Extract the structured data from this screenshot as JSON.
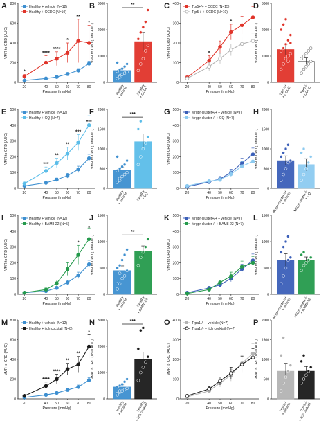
{
  "colors": {
    "blue": "#3d8fd0",
    "red": "#e0342a",
    "lightblue": "#5bbde9",
    "green": "#259a4c",
    "black": "#1a1a1a",
    "darkblue": "#3b5fb8",
    "paleblue": "#8ccaf0",
    "gray": "#b3b3b3"
  },
  "chart_data": [
    {
      "panel": "A",
      "type": "line",
      "ylabel": "VMR to CRD (AUC)",
      "xlabel": "Pressure (mmHg)",
      "x": [
        20,
        40,
        50,
        60,
        70,
        80
      ],
      "ylim": [
        0,
        800
      ],
      "yticks": [
        0,
        200,
        400,
        600,
        800
      ],
      "series": [
        {
          "name": "Healthy + vehicle (N=12)",
          "color": "blue",
          "fill": "filled",
          "values": [
            20,
            40,
            55,
            85,
            120,
            190
          ],
          "err": [
            5,
            8,
            10,
            15,
            20,
            25
          ]
        },
        {
          "name": "Healthy + CCDC (N=10)",
          "color": "red",
          "fill": "filled",
          "values": [
            60,
            200,
            240,
            300,
            420,
            400
          ],
          "err": [
            20,
            70,
            70,
            100,
            220,
            180
          ]
        }
      ],
      "annotations": [
        {
          "x": 20,
          "label": "*"
        },
        {
          "x": 40,
          "label": "****"
        },
        {
          "x": 50,
          "label": "****"
        },
        {
          "x": 60,
          "label": "*"
        },
        {
          "x": 70,
          "label": "**"
        },
        {
          "x": 80,
          "label": "*"
        }
      ]
    },
    {
      "panel": "B",
      "type": "bar",
      "ylabel": "VMR to CRD (Total AUC)",
      "ylim": [
        0,
        3000
      ],
      "yticks": [
        0,
        1000,
        2000,
        3000
      ],
      "categories": [
        "Healthy\n+ vehicle",
        "Healthy\n+ CCDC"
      ],
      "cat_colors": [
        "blue",
        "red"
      ],
      "bars": [
        {
          "color": "blue",
          "value": 450,
          "err": 80,
          "points": [
            150,
            250,
            300,
            350,
            400,
            420,
            480,
            520,
            600,
            700,
            750,
            200
          ]
        },
        {
          "color": "red",
          "value": 1550,
          "err": 350,
          "points": [
            450,
            700,
            900,
            1200,
            1400,
            1650,
            1900,
            2100,
            2300,
            2750
          ]
        }
      ],
      "significance": "**"
    },
    {
      "panel": "C",
      "type": "line",
      "ylabel": "VMR to CRD (AUC)",
      "xlabel": "Pressure (mmHg)",
      "x": [
        20,
        40,
        50,
        60,
        70,
        80
      ],
      "ylim": [
        0,
        400
      ],
      "yticks": [
        0,
        100,
        200,
        300,
        400
      ],
      "series": [
        {
          "name": "Tgr5+/+ + CCDC (N=15)",
          "color": "red",
          "fill": "filled",
          "values": [
            25,
            110,
            180,
            255,
            290,
            330
          ],
          "err": [
            8,
            25,
            30,
            40,
            45,
            55
          ]
        },
        {
          "name": "Tgr5-/- + CCDC (N=10)",
          "color": "gray",
          "fill": "open",
          "values": [
            20,
            80,
            120,
            165,
            195,
            210
          ],
          "err": [
            6,
            20,
            25,
            30,
            35,
            40
          ]
        }
      ],
      "annotations": [
        {
          "x": 40,
          "label": "*"
        },
        {
          "x": 60,
          "label": "*"
        }
      ]
    },
    {
      "panel": "D",
      "type": "bar",
      "ylabel": "VMR to CRD (Total AUC)",
      "ylim": [
        0,
        3000
      ],
      "yticks": [
        0,
        1000,
        2000,
        3000
      ],
      "categories": [
        "Tgr5+/+\n+ CCDC",
        "Tgr5-/-\n+ CCDC"
      ],
      "cat_colors": [
        "red",
        "gray"
      ],
      "bars": [
        {
          "color": "red",
          "value": 1250,
          "err": 200,
          "points": [
            500,
            700,
            900,
            1000,
            1100,
            1200,
            1300,
            1450,
            1600,
            1800,
            2000,
            2200,
            2400,
            800,
            1500
          ]
        },
        {
          "color": "gray",
          "value": 800,
          "err": 130,
          "points": [
            350,
            500,
            600,
            700,
            800,
            900,
            1000,
            1100,
            1200,
            1300
          ]
        }
      ],
      "open_second": true
    },
    {
      "panel": "E",
      "type": "line",
      "ylabel": "VMR to CRD (AUC)",
      "xlabel": "Pressure (mmHg)",
      "x": [
        20,
        40,
        50,
        60,
        70,
        80
      ],
      "ylim": [
        0,
        500
      ],
      "yticks": [
        0,
        100,
        200,
        300,
        400,
        500
      ],
      "series": [
        {
          "name": "Healthy + vehicle (N=12)",
          "color": "blue",
          "fill": "filled",
          "values": [
            15,
            35,
            55,
            80,
            120,
            190
          ],
          "err": [
            4,
            8,
            10,
            15,
            20,
            25
          ]
        },
        {
          "name": "Healthy + CQ (N=7)",
          "color": "lightblue",
          "fill": "filled",
          "values": [
            30,
            110,
            160,
            220,
            290,
            400
          ],
          "err": [
            10,
            25,
            30,
            40,
            50,
            60
          ]
        }
      ],
      "annotations": [
        {
          "x": 40,
          "label": "***"
        },
        {
          "x": 50,
          "label": "**"
        },
        {
          "x": 60,
          "label": "**"
        },
        {
          "x": 70,
          "label": "***"
        },
        {
          "x": 80,
          "label": "***"
        }
      ]
    },
    {
      "panel": "F",
      "type": "bar",
      "ylabel": "VMR to CRD (Total AUC)",
      "ylim": [
        0,
        2000
      ],
      "yticks": [
        0,
        500,
        1000,
        1500,
        2000
      ],
      "categories": [
        "Healthy\n+ vehicle",
        "Healthy\n+ CQ"
      ],
      "cat_colors": [
        "blue",
        "lightblue"
      ],
      "bars": [
        {
          "color": "blue",
          "value": 450,
          "err": 80,
          "points": [
            150,
            250,
            300,
            350,
            400,
            450,
            500,
            550,
            600,
            700,
            800,
            200
          ]
        },
        {
          "color": "lightblue",
          "value": 1180,
          "err": 200,
          "points": [
            600,
            800,
            1000,
            1150,
            1300,
            1500,
            1700
          ]
        }
      ],
      "significance": "***"
    },
    {
      "panel": "G",
      "type": "line",
      "ylabel": "VMR to CRD (AUC)",
      "xlabel": "Pressure (mmHg)",
      "x": [
        20,
        40,
        50,
        60,
        70,
        80
      ],
      "ylim": [
        0,
        500
      ],
      "yticks": [
        0,
        100,
        200,
        300,
        400,
        500
      ],
      "series": [
        {
          "name": "Mrgpr-cluster+/+ + vehicle (N=9)",
          "color": "darkblue",
          "fill": "filled",
          "values": [
            10,
            40,
            60,
            100,
            160,
            215
          ],
          "err": [
            5,
            10,
            15,
            20,
            30,
            40
          ]
        },
        {
          "name": "Mrgpr-cluster-/- + CQ (N=7)",
          "color": "paleblue",
          "fill": "filled",
          "values": [
            15,
            45,
            55,
            90,
            140,
            170
          ],
          "err": [
            6,
            12,
            15,
            20,
            30,
            35
          ]
        }
      ],
      "annotations": []
    },
    {
      "panel": "H",
      "type": "bar",
      "ylabel": "VMR to CRD (Total AUC)",
      "ylim": [
        0,
        2000
      ],
      "yticks": [
        0,
        500,
        1000,
        1500,
        2000
      ],
      "categories": [
        "Mrgpr-cluster+/+\n+ vehicle",
        "Mrgpr-cluster-/-\n+ CQ"
      ],
      "cat_colors": [
        "darkblue",
        "paleblue"
      ],
      "bars": [
        {
          "color": "darkblue",
          "value": 700,
          "err": 120,
          "points": [
            200,
            350,
            500,
            650,
            700,
            800,
            900,
            1000,
            1100
          ]
        },
        {
          "color": "paleblue",
          "value": 600,
          "err": 150,
          "points": [
            200,
            350,
            500,
            650,
            800,
            900,
            1000
          ]
        }
      ]
    },
    {
      "panel": "I",
      "type": "line",
      "ylabel": "VMR to CRD (AUC)",
      "xlabel": "Pressure (mmHg)",
      "x": [
        20,
        40,
        50,
        60,
        70,
        80
      ],
      "ylim": [
        0,
        500
      ],
      "yticks": [
        0,
        100,
        200,
        300,
        400,
        500
      ],
      "series": [
        {
          "name": "Healthy + vehicle (N=12)",
          "color": "blue",
          "fill": "filled",
          "values": [
            10,
            20,
            40,
            75,
            120,
            190
          ],
          "err": [
            3,
            6,
            10,
            15,
            20,
            25
          ]
        },
        {
          "name": "Healthy + BAM8-22 (N=5)",
          "color": "green",
          "fill": "filled",
          "values": [
            10,
            30,
            70,
            160,
            250,
            350
          ],
          "err": [
            4,
            10,
            20,
            40,
            60,
            70
          ]
        }
      ],
      "annotations": [
        {
          "x": 70,
          "label": "*"
        },
        {
          "x": 80,
          "label": "*"
        }
      ]
    },
    {
      "panel": "J",
      "type": "bar",
      "ylabel": "VMR to CRD (Total AUC)",
      "ylim": [
        0,
        1500
      ],
      "yticks": [
        0,
        500,
        1000,
        1500
      ],
      "categories": [
        "Healthy\n+ vehicle",
        "Healthy\n+ BAM8-22"
      ],
      "cat_colors": [
        "blue",
        "green"
      ],
      "bars": [
        {
          "color": "blue",
          "value": 450,
          "err": 90,
          "points": [
            100,
            200,
            300,
            350,
            450,
            500,
            550,
            650,
            750,
            850,
            200,
            400
          ]
        },
        {
          "color": "green",
          "value": 820,
          "err": 100,
          "points": [
            550,
            700,
            800,
            900,
            1050
          ]
        }
      ],
      "significance": "**"
    },
    {
      "panel": "K",
      "type": "line",
      "ylabel": "VMR to CRD (AUC)",
      "xlabel": "Pressure (mmHg)",
      "x": [
        20,
        40,
        50,
        60,
        70,
        80
      ],
      "ylim": [
        0,
        500
      ],
      "yticks": [
        0,
        100,
        200,
        300,
        400,
        500
      ],
      "series": [
        {
          "name": "Mrgpr-cluster+/+ + vehicle (N=9)",
          "color": "darkblue",
          "fill": "filled",
          "values": [
            10,
            40,
            60,
            100,
            160,
            215
          ],
          "err": [
            5,
            10,
            15,
            20,
            30,
            40
          ]
        },
        {
          "name": "Mrgpr-cluster-/- + BAM8-22 (N=7)",
          "color": "green",
          "fill": "filled",
          "values": [
            5,
            30,
            75,
            115,
            175,
            200
          ],
          "err": [
            3,
            8,
            15,
            25,
            35,
            40
          ]
        }
      ],
      "annotations": []
    },
    {
      "panel": "L",
      "type": "bar",
      "ylabel": "VMR to CRD (Total AUC)",
      "ylim": [
        0,
        1500
      ],
      "yticks": [
        0,
        500,
        1000,
        1500
      ],
      "categories": [
        "Mrgpr-cluster+/+\n+ vehicle",
        "Mrgpr-cluster-/-\n+ BAM8-22"
      ],
      "cat_colors": [
        "darkblue",
        "green"
      ],
      "bars": [
        {
          "color": "darkblue",
          "value": 650,
          "err": 120,
          "points": [
            200,
            350,
            500,
            650,
            700,
            800,
            900,
            1000,
            1100
          ]
        },
        {
          "color": "green",
          "value": 650,
          "err": 60,
          "points": [
            450,
            550,
            600,
            650,
            700,
            750,
            800
          ]
        }
      ]
    },
    {
      "panel": "M",
      "type": "line",
      "ylabel": "VMR to CRD (AUC)",
      "xlabel": "Pressure (mmHg)",
      "x": [
        20,
        40,
        50,
        60,
        70,
        80
      ],
      "ylim": [
        0,
        800
      ],
      "yticks": [
        0,
        200,
        400,
        600,
        800
      ],
      "series": [
        {
          "name": "Healthy + vehicle (N=12)",
          "color": "blue",
          "fill": "filled",
          "values": [
            15,
            40,
            60,
            90,
            120,
            190
          ],
          "err": [
            4,
            8,
            10,
            15,
            20,
            25
          ]
        },
        {
          "name": "Healthy + itch cocktail (N=8)",
          "color": "black",
          "fill": "filled",
          "values": [
            30,
            130,
            200,
            300,
            350,
            530
          ],
          "err": [
            10,
            40,
            50,
            60,
            80,
            120
          ]
        }
      ],
      "annotations": [
        {
          "x": 40,
          "label": "****"
        },
        {
          "x": 50,
          "label": "****"
        },
        {
          "x": 60,
          "label": "**"
        },
        {
          "x": 70,
          "label": "**"
        },
        {
          "x": 80,
          "label": "*"
        }
      ]
    },
    {
      "panel": "N",
      "type": "bar",
      "ylabel": "VMR to CRD (Total AUC)",
      "ylim": [
        0,
        3000
      ],
      "yticks": [
        0,
        1000,
        2000,
        3000
      ],
      "categories": [
        "Healthy\n+ vehicle",
        "Healthy\n+ itch cocktail"
      ],
      "cat_colors": [
        "blue",
        "black"
      ],
      "bars": [
        {
          "color": "blue",
          "value": 450,
          "err": 80,
          "points": [
            150,
            250,
            300,
            350,
            400,
            450,
            500,
            550,
            650,
            750,
            200,
            300
          ]
        },
        {
          "color": "black",
          "value": 1500,
          "err": 280,
          "points": [
            700,
            1000,
            1200,
            1400,
            1600,
            1900,
            2600,
            2700
          ]
        }
      ],
      "significance": "***"
    },
    {
      "panel": "O",
      "type": "line",
      "ylabel": "VMR to CRD (AUC)",
      "xlabel": "Pressure (mmHg)",
      "x": [
        20,
        40,
        50,
        60,
        70,
        80
      ],
      "ylim": [
        0,
        400
      ],
      "yticks": [
        0,
        100,
        200,
        300,
        400
      ],
      "series": [
        {
          "name": "Trpa1-/- + vehicle (N=7)",
          "color": "gray",
          "fill": "filled",
          "values": [
            10,
            40,
            80,
            120,
            180,
            230
          ],
          "err": [
            5,
            10,
            20,
            30,
            40,
            50
          ]
        },
        {
          "name": "Trpa1-/- + itch cocktail (N=7)",
          "color": "black",
          "fill": "open",
          "values": [
            15,
            50,
            90,
            130,
            175,
            210
          ],
          "err": [
            5,
            12,
            20,
            30,
            40,
            45
          ]
        }
      ],
      "annotations": []
    },
    {
      "panel": "P",
      "type": "bar",
      "ylabel": "VMR to CRD (Total AUC)",
      "ylim": [
        0,
        2000
      ],
      "yticks": [
        0,
        500,
        1000,
        1500,
        2000
      ],
      "categories": [
        "Trpa1-/-\n+ vehicle",
        "Trpa1-/-\n+ itch cocktail"
      ],
      "cat_colors": [
        "gray",
        "black"
      ],
      "bars": [
        {
          "color": "gray",
          "value": 700,
          "err": 200,
          "points": [
            200,
            400,
            550,
            700,
            850,
            1100,
            1550
          ]
        },
        {
          "color": "black",
          "value": 700,
          "err": 120,
          "points": [
            400,
            500,
            600,
            700,
            800,
            950,
            1100
          ]
        }
      ]
    }
  ]
}
